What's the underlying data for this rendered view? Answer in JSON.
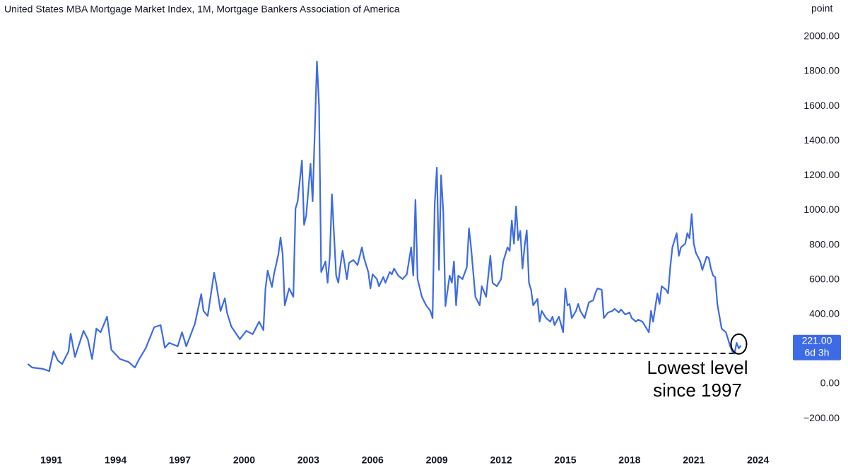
{
  "chart_data": {
    "type": "line",
    "title": "United States MBA Mortgage Market Index, 1M, Mortgage Bankers Association of America",
    "y_label": "point",
    "color": "#3d6be6",
    "x": [
      1989.9,
      1990.1,
      1990.6,
      1990.9,
      1991.1,
      1991.3,
      1991.5,
      1991.8,
      1991.9,
      1992.1,
      1992.5,
      1992.7,
      1992.9,
      1993.1,
      1993.3,
      1993.6,
      1993.8,
      1994.2,
      1994.6,
      1994.9,
      1995.1,
      1995.4,
      1995.8,
      1996.1,
      1996.3,
      1996.5,
      1996.9,
      1997.1,
      1997.3,
      1997.7,
      1998.0,
      1998.1,
      1998.3,
      1998.6,
      1998.7,
      1998.9,
      1999.1,
      1999.2,
      1999.4,
      1999.8,
      2000.1,
      2000.4,
      2000.7,
      2000.9,
      2001.0,
      2001.1,
      2001.3,
      2001.4,
      2001.6,
      2001.7,
      2001.8,
      2001.9,
      2002.1,
      2002.3,
      2002.4,
      2002.5,
      2002.7,
      2002.8,
      2002.9,
      2003.1,
      2003.2,
      2003.4,
      2003.5,
      2003.6,
      2003.8,
      2003.9,
      2004.0,
      2004.1,
      2004.3,
      2004.4,
      2004.5,
      2004.6,
      2004.8,
      2004.9,
      2005.1,
      2005.3,
      2005.5,
      2005.6,
      2005.8,
      2005.9,
      2006.0,
      2006.2,
      2006.3,
      2006.5,
      2006.6,
      2006.8,
      2006.9,
      2007.0,
      2007.2,
      2007.4,
      2007.6,
      2007.8,
      2007.9,
      2008.0,
      2008.1,
      2008.3,
      2008.5,
      2008.7,
      2008.8,
      2008.9,
      2009.0,
      2009.1,
      2009.2,
      2009.3,
      2009.4,
      2009.6,
      2009.7,
      2009.8,
      2009.9,
      2010.0,
      2010.2,
      2010.4,
      2010.5,
      2010.6,
      2010.8,
      2011.0,
      2011.1,
      2011.3,
      2011.5,
      2011.6,
      2011.8,
      2012.0,
      2012.1,
      2012.3,
      2012.4,
      2012.5,
      2012.6,
      2012.7,
      2012.8,
      2012.9,
      2013.0,
      2013.1,
      2013.2,
      2013.3,
      2013.4,
      2013.5,
      2013.7,
      2013.8,
      2013.9,
      2014.1,
      2014.3,
      2014.4,
      2014.5,
      2014.7,
      2014.9,
      2015.0,
      2015.1,
      2015.2,
      2015.3,
      2015.5,
      2015.6,
      2015.7,
      2015.9,
      2016.1,
      2016.3,
      2016.4,
      2016.5,
      2016.7,
      2016.8,
      2017.0,
      2017.2,
      2017.3,
      2017.5,
      2017.6,
      2017.8,
      2018.0,
      2018.1,
      2018.3,
      2018.4,
      2018.6,
      2018.7,
      2018.9,
      2019.0,
      2019.1,
      2019.3,
      2019.4,
      2019.5,
      2019.7,
      2019.8,
      2019.9,
      2020.0,
      2020.2,
      2020.3,
      2020.4,
      2020.6,
      2020.7,
      2020.8,
      2020.9,
      2021.0,
      2021.1,
      2021.3,
      2021.4,
      2021.6,
      2021.7,
      2021.8,
      2021.9,
      2022.0,
      2022.1,
      2022.2,
      2022.3,
      2022.5,
      2022.6,
      2022.7,
      2022.8,
      2022.9,
      2023.0,
      2023.1,
      2023.2
    ],
    "values": [
      114,
      94,
      86,
      73,
      187,
      134,
      114,
      187,
      289,
      155,
      305,
      257,
      143,
      318,
      297,
      387,
      196,
      143,
      126,
      94,
      143,
      204,
      326,
      338,
      208,
      236,
      216,
      297,
      216,
      346,
      517,
      420,
      391,
      640,
      574,
      420,
      493,
      411,
      330,
      257,
      305,
      286,
      358,
      309,
      550,
      652,
      558,
      635,
      745,
      843,
      745,
      452,
      550,
      501,
      1010,
      1051,
      1287,
      916,
      969,
      1267,
      1051,
      1857,
      1601,
      644,
      705,
      582,
      733,
      1092,
      623,
      582,
      684,
      766,
      603,
      697,
      713,
      684,
      786,
      725,
      644,
      550,
      631,
      603,
      562,
      615,
      582,
      644,
      631,
      664,
      623,
      603,
      631,
      786,
      623,
      1059,
      603,
      501,
      452,
      420,
      379,
      1031,
      1246,
      656,
      1202,
      990,
      448,
      623,
      582,
      705,
      452,
      623,
      603,
      672,
      896,
      786,
      501,
      452,
      562,
      501,
      737,
      582,
      562,
      603,
      705,
      786,
      766,
      941,
      807,
      1022,
      827,
      880,
      664,
      795,
      884,
      582,
      542,
      452,
      489,
      358,
      420,
      379,
      358,
      387,
      338,
      387,
      297,
      550,
      452,
      460,
      379,
      420,
      460,
      420,
      379,
      469,
      481,
      521,
      550,
      542,
      379,
      411,
      420,
      432,
      411,
      428,
      399,
      411,
      379,
      358,
      370,
      358,
      338,
      297,
      420,
      358,
      521,
      460,
      562,
      542,
      521,
      672,
      786,
      868,
      737,
      786,
      807,
      868,
      839,
      978,
      807,
      754,
      705,
      656,
      733,
      725,
      664,
      623,
      615,
      460,
      387,
      318,
      297,
      257,
      216,
      187,
      175,
      236,
      204,
      221
    ],
    "xlim": [
      1988.6,
      2025
    ],
    "xticks": [
      1991,
      1994,
      1997,
      2000,
      2003,
      2006,
      2009,
      2012,
      2015,
      2018,
      2021,
      2024
    ],
    "ylim": [
      -350,
      2150
    ],
    "yticks": [
      {
        "value": -200,
        "label": "−200.00"
      },
      {
        "value": 0,
        "label": "0.00"
      },
      {
        "value": 200,
        "label": "200.00"
      },
      {
        "value": 400,
        "label": "400.00"
      },
      {
        "value": 600,
        "label": "600.00"
      },
      {
        "value": 800,
        "label": "800.00"
      },
      {
        "value": 1000,
        "label": "1000.00"
      },
      {
        "value": 1200,
        "label": "1200.00"
      },
      {
        "value": 1400,
        "label": "1400.00"
      },
      {
        "value": 1600,
        "label": "1600.00"
      },
      {
        "value": 1800,
        "label": "1800.00"
      },
      {
        "value": 2000,
        "label": "2000.00"
      }
    ],
    "last_value": {
      "value": 221,
      "label": "221.00"
    },
    "countdown": "6d 3h",
    "reference_line": {
      "value": 175,
      "x_start": 1996.9,
      "x_end": 2022.9
    },
    "annotation": [
      "Lowest level",
      "since 1997"
    ]
  }
}
